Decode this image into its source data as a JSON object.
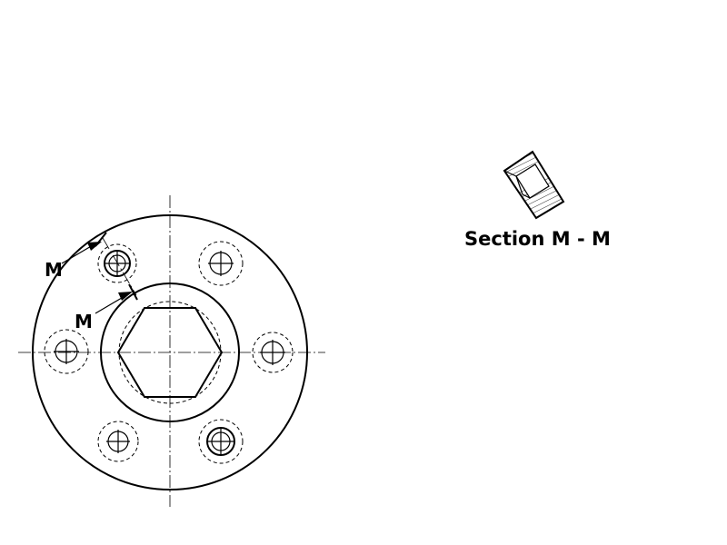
{
  "drawing": {
    "cut_marker_outer": "M",
    "cut_marker_inner": "M",
    "section_title": "Section M - M"
  },
  "colors": {
    "line": "#000000",
    "background": "#ffffff",
    "hatch": "#555555"
  }
}
